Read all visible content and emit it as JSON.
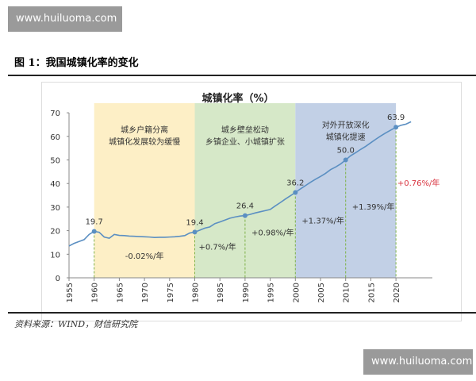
{
  "watermark": "www.huiluoma.com",
  "figure_title": "图 1：我国城镇化率的变化",
  "source": "资料来源：WIND，财信研究院",
  "chart_data": {
    "type": "line",
    "title": "城镇化率（%）",
    "xlim": [
      1955,
      2023
    ],
    "ylim": [
      0,
      70
    ],
    "yticks": [
      0,
      10,
      20,
      30,
      40,
      50,
      60,
      70
    ],
    "xticks": [
      1955,
      1960,
      1965,
      1970,
      1975,
      1980,
      1985,
      1990,
      1995,
      2000,
      2005,
      2010,
      2015,
      2020
    ],
    "grid": false,
    "line_color": "#5b8fc2",
    "x": [
      1955,
      1956,
      1957,
      1958,
      1959,
      1960,
      1961,
      1962,
      1963,
      1964,
      1965,
      1966,
      1967,
      1968,
      1969,
      1970,
      1971,
      1972,
      1973,
      1974,
      1975,
      1976,
      1977,
      1978,
      1979,
      1980,
      1981,
      1982,
      1983,
      1984,
      1985,
      1986,
      1987,
      1988,
      1989,
      1990,
      1991,
      1992,
      1993,
      1994,
      1995,
      1996,
      1997,
      1998,
      1999,
      2000,
      2001,
      2002,
      2003,
      2004,
      2005,
      2006,
      2007,
      2008,
      2009,
      2010,
      2011,
      2012,
      2013,
      2014,
      2015,
      2016,
      2017,
      2018,
      2019,
      2020,
      2021,
      2022,
      2023
    ],
    "y": [
      13.5,
      14.6,
      15.4,
      16.2,
      18.4,
      19.7,
      19.3,
      17.3,
      16.8,
      18.4,
      18.0,
      17.9,
      17.7,
      17.6,
      17.5,
      17.4,
      17.3,
      17.1,
      17.2,
      17.2,
      17.3,
      17.4,
      17.6,
      17.9,
      19.0,
      19.4,
      20.2,
      21.1,
      21.6,
      23.0,
      23.7,
      24.5,
      25.3,
      25.8,
      26.2,
      26.4,
      26.9,
      27.5,
      28.0,
      28.5,
      29.0,
      30.5,
      31.9,
      33.4,
      34.8,
      36.2,
      37.7,
      39.1,
      40.5,
      41.8,
      43.0,
      44.3,
      45.9,
      47.0,
      48.3,
      50.0,
      51.8,
      53.1,
      54.5,
      55.8,
      57.3,
      58.8,
      60.2,
      61.5,
      62.7,
      63.9,
      64.7,
      65.2,
      66.2
    ],
    "labeled_points": [
      {
        "x": 1960,
        "y": 19.7,
        "label": "19.7"
      },
      {
        "x": 1980,
        "y": 19.4,
        "label": "19.4"
      },
      {
        "x": 1990,
        "y": 26.4,
        "label": "26.4"
      },
      {
        "x": 2000,
        "y": 36.2,
        "label": "36.2"
      },
      {
        "x": 2010,
        "y": 50.0,
        "label": "50.0"
      },
      {
        "x": 2020,
        "y": 63.9,
        "label": "63.9"
      }
    ],
    "periods": [
      {
        "from": 1960,
        "to": 1980,
        "color": "#fdefc6",
        "text": [
          "城乡户籍分离",
          "城镇化发展较为缓慢"
        ]
      },
      {
        "from": 1980,
        "to": 2000,
        "color": "#d6e8c8",
        "text": [
          "城乡壁垒松动",
          "乡镇企业、小城镇扩张"
        ]
      },
      {
        "from": 2000,
        "to": 2020,
        "color": "#c2d0e6",
        "text": [
          "对外开放深化",
          "城镇化提速"
        ]
      }
    ],
    "annotations": [
      {
        "x": 1970,
        "y": 8,
        "text": "-0.02%/年",
        "color": "#333333"
      },
      {
        "x": 1984.5,
        "y": 12,
        "text": "+0.7%/年",
        "color": "#333333"
      },
      {
        "x": 1995.5,
        "y": 18,
        "text": "+0.98%/年",
        "color": "#333333"
      },
      {
        "x": 2005.5,
        "y": 23,
        "text": "+1.37%/年",
        "color": "#333333"
      },
      {
        "x": 2015.5,
        "y": 29,
        "text": "+1.39%/年",
        "color": "#333333"
      },
      {
        "x": 2024.5,
        "y": 39,
        "text": "+0.76%/年",
        "color": "#d9333f"
      }
    ]
  }
}
